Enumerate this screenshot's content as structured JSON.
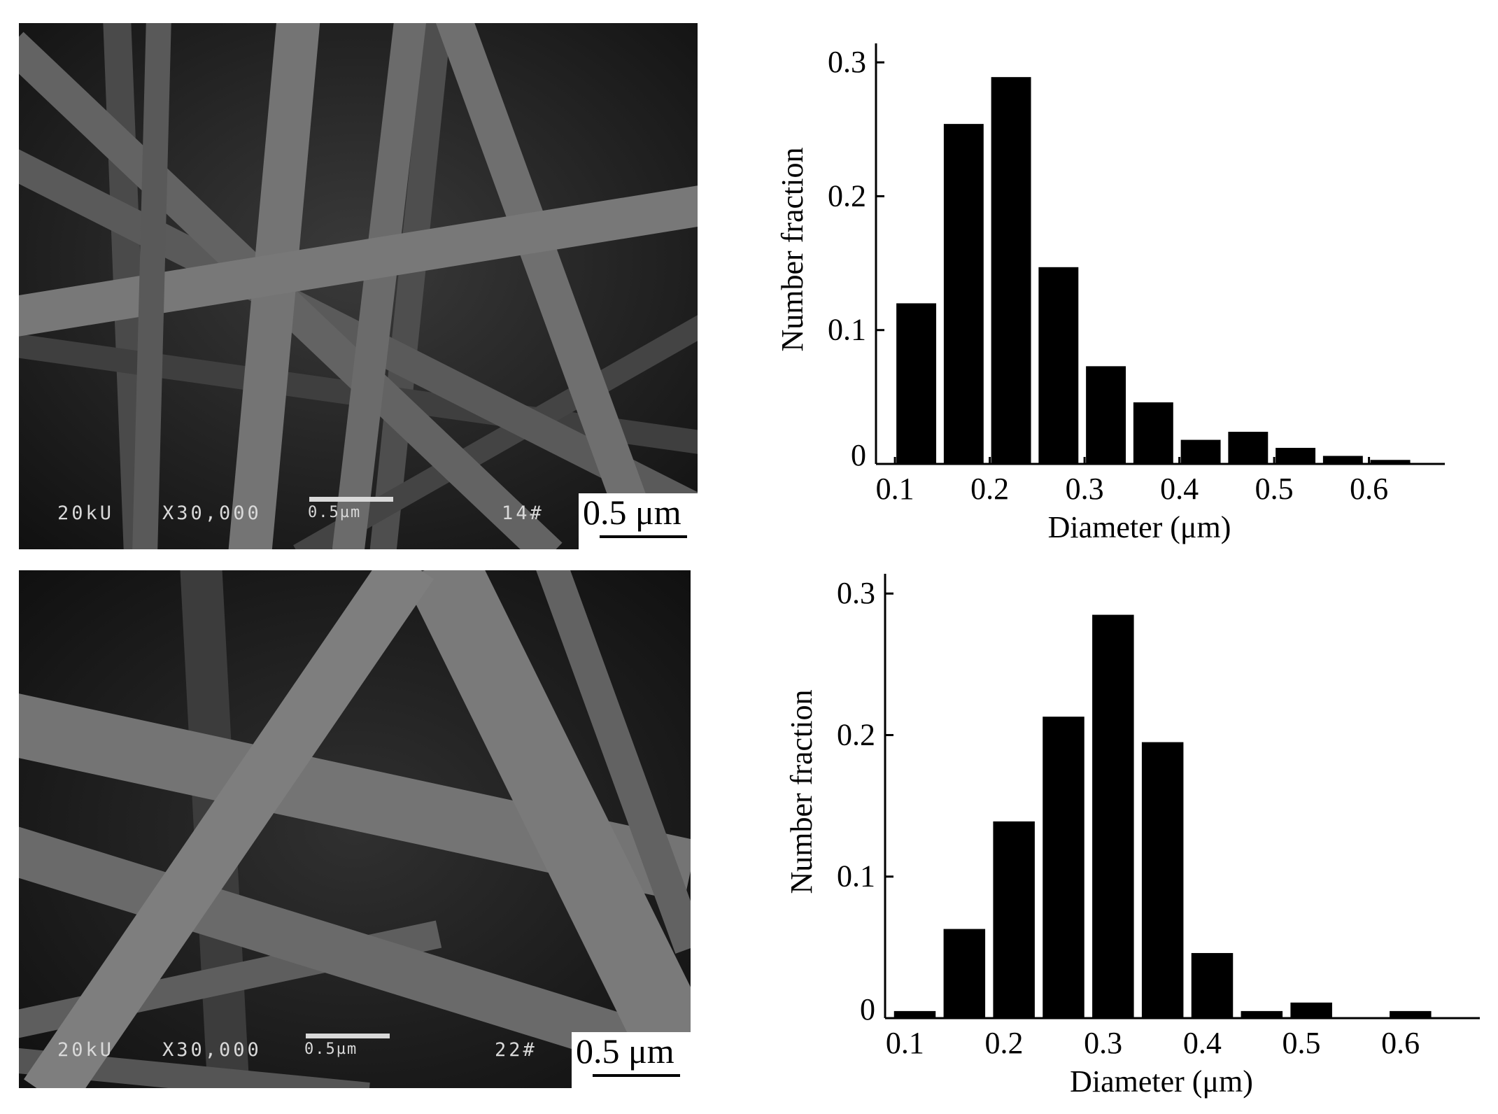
{
  "micrographs": [
    {
      "sem_voltage": "20kU",
      "sem_magnification": "X30,000",
      "sem_bar_label": "0.5µm",
      "sem_sample_id": "14#",
      "scale_label": "0.5 μm"
    },
    {
      "sem_voltage": "20kU",
      "sem_magnification": "X30,000",
      "sem_bar_label": "0.5µm",
      "sem_sample_id": "22#",
      "scale_label": "0.5 μm"
    }
  ],
  "chart_data": [
    {
      "type": "bar",
      "xlabel": "Diameter (μm)",
      "ylabel": "Number fraction",
      "xlim": [
        0.08,
        0.68
      ],
      "ylim": [
        0,
        0.31
      ],
      "x_ticks": [
        0.1,
        0.2,
        0.3,
        0.4,
        0.5,
        0.6
      ],
      "y_ticks": [
        0,
        0.1,
        0.2,
        0.3
      ],
      "x_tick_labels": [
        "0.1",
        "0.2",
        "0.3",
        "0.4",
        "0.5",
        "0.6"
      ],
      "y_tick_labels": [
        "0",
        "0.1",
        "0.2",
        "0.3"
      ],
      "bar_width": 0.042,
      "x": [
        0.1225,
        0.1725,
        0.2225,
        0.2725,
        0.3225,
        0.3725,
        0.4225,
        0.4725,
        0.5225,
        0.5725,
        0.6225
      ],
      "values": [
        0.12,
        0.254,
        0.289,
        0.147,
        0.073,
        0.046,
        0.018,
        0.024,
        0.012,
        0.006,
        0.003
      ],
      "grid": false,
      "color": "#000000"
    },
    {
      "type": "bar",
      "xlabel": "Diameter (μm)",
      "ylabel": "Number fraction",
      "xlim": [
        0.08,
        0.68
      ],
      "ylim": [
        0,
        0.31
      ],
      "x_ticks": [
        0.1,
        0.2,
        0.3,
        0.4,
        0.5,
        0.6
      ],
      "y_ticks": [
        0,
        0.1,
        0.2,
        0.3
      ],
      "x_tick_labels": [
        "0.1",
        "0.2",
        "0.3",
        "0.4",
        "0.5",
        "0.6"
      ],
      "y_tick_labels": [
        "0",
        "0.1",
        "0.2",
        "0.3"
      ],
      "bar_width": 0.042,
      "x": [
        0.11,
        0.16,
        0.21,
        0.26,
        0.31,
        0.36,
        0.41,
        0.46,
        0.51,
        0.61
      ],
      "values": [
        0.005,
        0.063,
        0.139,
        0.213,
        0.285,
        0.195,
        0.046,
        0.005,
        0.011,
        0.005
      ],
      "grid": false,
      "color": "#000000"
    }
  ]
}
